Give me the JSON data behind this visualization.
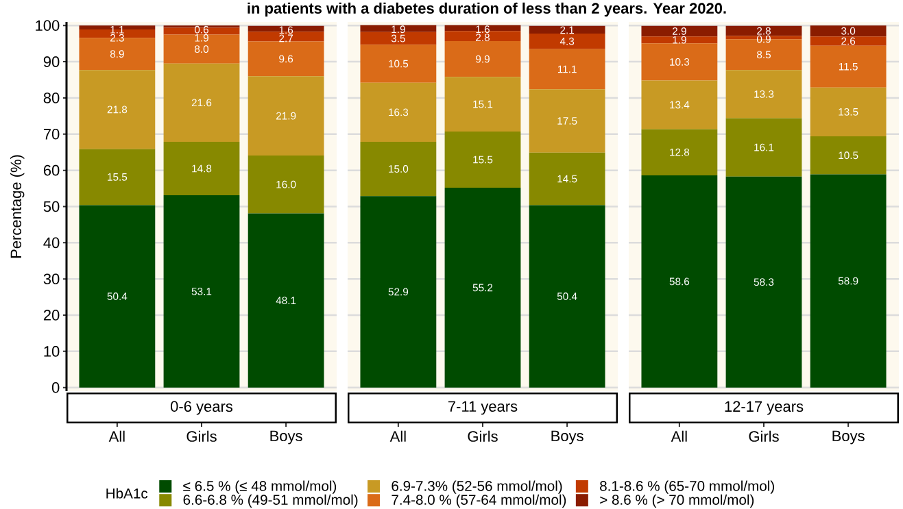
{
  "chart_data": [
    {
      "type": "bar",
      "title": "in patients with a diabetes duration of less than 2 years. Year 2020.",
      "xlabel": "0-6 years",
      "ylabel": "Percentage (%)",
      "legend_title": "HbA1c",
      "legend": "bottom",
      "stacked": true,
      "grid": "y",
      "ylim": [
        -1,
        101
      ],
      "yticks": [
        0,
        10,
        20,
        30,
        40,
        50,
        60,
        70,
        80,
        90,
        100
      ],
      "categories": [
        "All",
        "Girls",
        "Boys"
      ],
      "series": [
        {
          "name": "≤ 6.5 % (≤ 48 mmol/mol)",
          "color": "#004b00",
          "values": [
            50.4,
            53.1,
            48.1
          ],
          "value_labels": [
            "50.4",
            "53.1",
            "48.1"
          ]
        },
        {
          "name": "6.6-6.8 % (49-51 mmol/mol)",
          "color": "#878900",
          "values": [
            15.5,
            14.8,
            16.0
          ],
          "value_labels": [
            "15.5",
            "14.8",
            "16.0"
          ]
        },
        {
          "name": "6.9-7.3% (52-56 mmol/mol)",
          "color": "#c89a24",
          "values": [
            21.8,
            21.6,
            21.9
          ],
          "value_labels": [
            "21.8",
            "21.6",
            "21.9"
          ]
        },
        {
          "name": "7.4-8.0 % (57-64 mmol/mol)",
          "color": "#da6b18",
          "values": [
            8.9,
            8.0,
            9.6
          ],
          "value_labels": [
            "8.9",
            "8.0",
            "9.6"
          ]
        },
        {
          "name": "8.1-8.6 % (65-70 mmol/mol)",
          "color": "#c13a00",
          "values": [
            2.3,
            1.9,
            2.7
          ],
          "value_labels": [
            "2.3",
            "1.9",
            "2.7"
          ]
        },
        {
          "name": "> 8.6 % (> 70 mmol/mol)",
          "color": "#8a1c00",
          "values": [
            1.1,
            0.6,
            1.6
          ],
          "value_labels": [
            "1.1",
            "0.6",
            "1.6"
          ]
        }
      ]
    },
    {
      "type": "bar",
      "xlabel": "7-11 years",
      "stacked": true,
      "grid": "y",
      "tick_labels": "x",
      "ylim": [
        -1,
        101
      ],
      "yticks": [
        0,
        10,
        20,
        30,
        40,
        50,
        60,
        70,
        80,
        90,
        100
      ],
      "categories": [
        "All",
        "Girls",
        "Boys"
      ],
      "series": [
        {
          "color": "#004b00",
          "values": [
            52.9,
            55.2,
            50.4
          ],
          "value_labels": [
            "52.9",
            "55.2",
            "50.4"
          ]
        },
        {
          "color": "#878900",
          "values": [
            15.0,
            15.5,
            14.5
          ],
          "value_labels": [
            "15.0",
            "15.5",
            "14.5"
          ]
        },
        {
          "color": "#c89a24",
          "values": [
            16.3,
            15.1,
            17.5
          ],
          "value_labels": [
            "16.3",
            "15.1",
            "17.5"
          ]
        },
        {
          "color": "#da6b18",
          "values": [
            10.5,
            9.9,
            11.1
          ],
          "value_labels": [
            "10.5",
            "9.9",
            "11.1"
          ]
        },
        {
          "color": "#c13a00",
          "values": [
            3.5,
            2.8,
            4.3
          ],
          "value_labels": [
            "3.5",
            "2.8",
            "4.3"
          ]
        },
        {
          "color": "#8a1c00",
          "values": [
            1.9,
            1.6,
            2.1
          ],
          "value_labels": [
            "1.9",
            "1.6",
            "2.1"
          ]
        }
      ]
    },
    {
      "type": "bar",
      "xlabel": "12-17 years",
      "stacked": true,
      "grid": "y",
      "tick_labels": "x",
      "ylim": [
        -1,
        101
      ],
      "yticks": [
        0,
        10,
        20,
        30,
        40,
        50,
        60,
        70,
        80,
        90,
        100
      ],
      "categories": [
        "All",
        "Girls",
        "Boys"
      ],
      "series": [
        {
          "color": "#004b00",
          "values": [
            58.6,
            58.3,
            58.9
          ],
          "value_labels": [
            "58.6",
            "58.3",
            "58.9"
          ]
        },
        {
          "color": "#878900",
          "values": [
            12.8,
            16.1,
            10.5
          ],
          "value_labels": [
            "12.8",
            "16.1",
            "10.5"
          ]
        },
        {
          "color": "#c89a24",
          "values": [
            13.4,
            13.3,
            13.5
          ],
          "value_labels": [
            "13.4",
            "13.3",
            "13.5"
          ]
        },
        {
          "color": "#da6b18",
          "values": [
            10.3,
            8.5,
            11.5
          ],
          "value_labels": [
            "10.3",
            "8.5",
            "11.5"
          ]
        },
        {
          "color": "#c13a00",
          "values": [
            1.9,
            0.9,
            2.6
          ],
          "value_labels": [
            "1.9",
            "0.9",
            "2.6"
          ]
        },
        {
          "color": "#8a1c00",
          "values": [
            2.9,
            2.8,
            3.0
          ],
          "value_labels": [
            "2.9",
            "2.8",
            "3.0"
          ]
        }
      ]
    }
  ]
}
